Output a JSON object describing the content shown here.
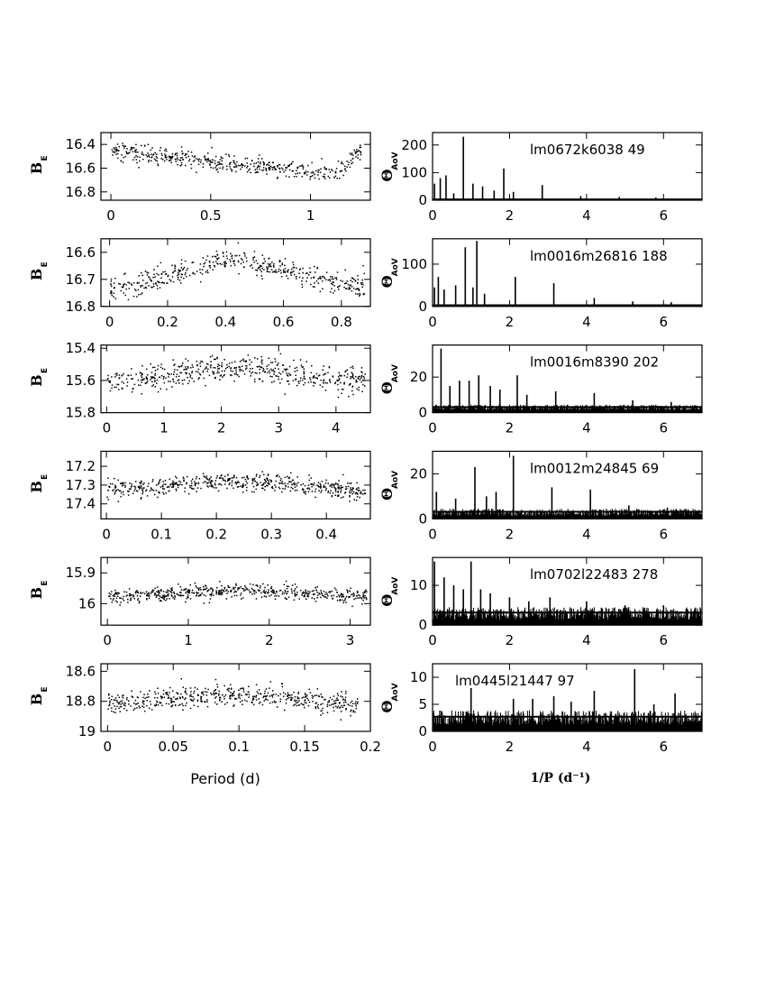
{
  "chart_data": {
    "type": "scatter",
    "layout": "6x2 grid: left column phase-folded light curves, right column AoV periodograms",
    "left_xlabel": "Period (d)",
    "right_xlabel": "1/P  (d⁻¹)",
    "panels": [
      {
        "star": "lm0672k6038 49",
        "left": {
          "ylabel": "B",
          "ylabel_sub": "E",
          "xlim": [
            -0.05,
            1.3
          ],
          "ylim": [
            16.87,
            16.3
          ],
          "xticks": [
            0,
            0.5,
            1
          ],
          "xtick_labels": [
            "0",
            "0.5",
            "1"
          ],
          "yticks": [
            16.4,
            16.6,
            16.8
          ],
          "ytick_labels": [
            "16.4",
            "16.6",
            "16.8"
          ],
          "period": 1.25,
          "mag_mean": 16.55,
          "amplitude": 0.1,
          "scatter": 0.035,
          "shape": "rising",
          "points": 460
        },
        "right": {
          "ylabel": "Θ",
          "ylabel_sub": "AoV",
          "xlim": [
            0,
            7
          ],
          "ylim": [
            0,
            245
          ],
          "xticks": [
            0,
            2,
            4,
            6
          ],
          "xtick_labels": [
            "0",
            "2",
            "4",
            "6"
          ],
          "yticks": [
            0,
            100,
            200
          ],
          "ytick_labels": [
            "0",
            "100",
            "200"
          ],
          "noise": 3,
          "peaks": [
            [
              0.05,
              60
            ],
            [
              0.2,
              80
            ],
            [
              0.35,
              90
            ],
            [
              0.55,
              25
            ],
            [
              0.8,
              230
            ],
            [
              1.05,
              60
            ],
            [
              1.3,
              50
            ],
            [
              1.6,
              35
            ],
            [
              1.85,
              115
            ],
            [
              2.1,
              30
            ],
            [
              2.85,
              55
            ],
            [
              3.85,
              15
            ],
            [
              4.85,
              12
            ],
            [
              5.8,
              10
            ]
          ]
        }
      },
      {
        "star": "lm0016m26816 188",
        "left": {
          "ylabel": "B",
          "ylabel_sub": "E",
          "xlim": [
            -0.03,
            0.9
          ],
          "ylim": [
            16.8,
            16.55
          ],
          "xticks": [
            0,
            0.2,
            0.4,
            0.6,
            0.8
          ],
          "xtick_labels": [
            "0",
            "0.2",
            "0.4",
            "0.6",
            "0.8"
          ],
          "yticks": [
            16.6,
            16.7,
            16.8
          ],
          "ytick_labels": [
            "16.6",
            "16.7",
            "16.8"
          ],
          "period": 0.88,
          "mag_mean": 16.68,
          "amplitude": 0.045,
          "scatter": 0.022,
          "shape": "sine",
          "points": 460
        },
        "right": {
          "ylabel": "Θ",
          "ylabel_sub": "AoV",
          "xlim": [
            0,
            7
          ],
          "ylim": [
            0,
            160
          ],
          "xticks": [
            0,
            2,
            4,
            6
          ],
          "xtick_labels": [
            "0",
            "2",
            "4",
            "6"
          ],
          "yticks": [
            0,
            100
          ],
          "ytick_labels": [
            "0",
            "100"
          ],
          "noise": 3,
          "peaks": [
            [
              0.05,
              45
            ],
            [
              0.15,
              70
            ],
            [
              0.3,
              40
            ],
            [
              0.6,
              50
            ],
            [
              0.85,
              140
            ],
            [
              1.05,
              45
            ],
            [
              1.15,
              155
            ],
            [
              1.35,
              30
            ],
            [
              2.15,
              70
            ],
            [
              3.15,
              55
            ],
            [
              4.2,
              20
            ],
            [
              5.2,
              12
            ],
            [
              6.2,
              10
            ]
          ]
        }
      },
      {
        "star": "lm0016m8390 202",
        "left": {
          "ylabel": "B",
          "ylabel_sub": "E",
          "xlim": [
            -0.1,
            4.6
          ],
          "ylim": [
            15.8,
            15.38
          ],
          "xticks": [
            0,
            1,
            2,
            3,
            4
          ],
          "xtick_labels": [
            "0",
            "1",
            "2",
            "3",
            "4"
          ],
          "yticks": [
            15.4,
            15.6,
            15.8
          ],
          "ytick_labels": [
            "15.4",
            "15.6",
            "15.8"
          ],
          "period": 4.5,
          "mag_mean": 15.56,
          "amplitude": 0.045,
          "scatter": 0.04,
          "shape": "sine",
          "points": 520
        },
        "right": {
          "ylabel": "Θ",
          "ylabel_sub": "AoV",
          "xlim": [
            0,
            7
          ],
          "ylim": [
            0,
            38
          ],
          "xticks": [
            0,
            2,
            4,
            6
          ],
          "xtick_labels": [
            "0",
            "2",
            "4",
            "6"
          ],
          "yticks": [
            0,
            20
          ],
          "ytick_labels": [
            "0",
            "20"
          ],
          "noise": 3.5,
          "peaks": [
            [
              0.22,
              36
            ],
            [
              0.45,
              15
            ],
            [
              0.7,
              18
            ],
            [
              0.95,
              18
            ],
            [
              1.2,
              21
            ],
            [
              1.5,
              15
            ],
            [
              1.75,
              13
            ],
            [
              2.2,
              21
            ],
            [
              2.45,
              10
            ],
            [
              3.2,
              12
            ],
            [
              4.2,
              11
            ],
            [
              5.2,
              7
            ],
            [
              6.2,
              6
            ]
          ]
        }
      },
      {
        "star": "lm0012m24845 69",
        "left": {
          "ylabel": "B",
          "ylabel_sub": "E",
          "xlim": [
            -0.01,
            0.48
          ],
          "ylim": [
            17.48,
            17.12
          ],
          "xticks": [
            0,
            0.1,
            0.2,
            0.3,
            0.4
          ],
          "xtick_labels": [
            "0",
            "0.1",
            "0.2",
            "0.3",
            "0.4"
          ],
          "yticks": [
            17.2,
            17.3,
            17.4
          ],
          "ytick_labels": [
            "17.2",
            "17.3",
            "17.4"
          ],
          "period": 0.47,
          "mag_mean": 17.3,
          "amplitude": 0.02,
          "scatter": 0.025,
          "shape": "sine",
          "points": 540
        },
        "right": {
          "ylabel": "Θ",
          "ylabel_sub": "AoV",
          "xlim": [
            0,
            7
          ],
          "ylim": [
            0,
            30
          ],
          "xticks": [
            0,
            2,
            4,
            6
          ],
          "xtick_labels": [
            "0",
            "2",
            "4",
            "6"
          ],
          "yticks": [
            0,
            20
          ],
          "ytick_labels": [
            "0",
            "20"
          ],
          "noise": 3.5,
          "peaks": [
            [
              0.1,
              12
            ],
            [
              0.6,
              9
            ],
            [
              1.1,
              23
            ],
            [
              1.4,
              10
            ],
            [
              1.65,
              12
            ],
            [
              2.1,
              28
            ],
            [
              3.1,
              14
            ],
            [
              4.1,
              13
            ],
            [
              5.1,
              6
            ],
            [
              6.1,
              5
            ]
          ]
        }
      },
      {
        "star": "lm0702l22483 278",
        "left": {
          "ylabel": "B",
          "ylabel_sub": "E",
          "xlim": [
            -0.08,
            3.25
          ],
          "ylim": [
            16.07,
            15.85
          ],
          "xticks": [
            0,
            1,
            2,
            3
          ],
          "xtick_labels": [
            "0",
            "1",
            "2",
            "3"
          ],
          "yticks": [
            15.9,
            16
          ],
          "ytick_labels": [
            "15.9",
            "16"
          ],
          "period": 3.2,
          "mag_mean": 15.965,
          "amplitude": 0.008,
          "scatter": 0.011,
          "shape": "sine",
          "points": 540
        },
        "right": {
          "ylabel": "Θ",
          "ylabel_sub": "AoV",
          "xlim": [
            0,
            7
          ],
          "ylim": [
            0,
            17
          ],
          "xticks": [
            0,
            2,
            4,
            6
          ],
          "xtick_labels": [
            "0",
            "2",
            "4",
            "6"
          ],
          "yticks": [
            0,
            10
          ],
          "ytick_labels": [
            "0",
            "10"
          ],
          "noise": 3.5,
          "peaks": [
            [
              0.05,
              16
            ],
            [
              0.3,
              12
            ],
            [
              0.55,
              10
            ],
            [
              0.8,
              9
            ],
            [
              1.0,
              16
            ],
            [
              1.25,
              9
            ],
            [
              1.5,
              8
            ],
            [
              2.0,
              7
            ],
            [
              2.5,
              6
            ],
            [
              3.05,
              7
            ],
            [
              4.0,
              6
            ],
            [
              5.0,
              5
            ],
            [
              6.0,
              5
            ]
          ]
        }
      },
      {
        "star": "lm0445l21447 97",
        "left": {
          "ylabel": "B",
          "ylabel_sub": "E",
          "xlim": [
            -0.005,
            0.2
          ],
          "ylim": [
            19.0,
            18.55
          ],
          "xticks": [
            0,
            0.05,
            0.1,
            0.15,
            0.2
          ],
          "xtick_labels": [
            "0",
            "0.05",
            "0.1",
            "0.15",
            "0.2"
          ],
          "yticks": [
            18.6,
            18.8,
            19
          ],
          "ytick_labels": [
            "18.6",
            "18.8",
            "19"
          ],
          "period": 0.19,
          "mag_mean": 18.78,
          "amplitude": 0.03,
          "scatter": 0.035,
          "shape": "sine",
          "points": 520
        },
        "right": {
          "ylabel": "Θ",
          "ylabel_sub": "AoV",
          "xlim": [
            0,
            7
          ],
          "ylim": [
            0,
            12.5
          ],
          "xticks": [
            0,
            2,
            4,
            6
          ],
          "xtick_labels": [
            "0",
            "2",
            "4",
            "6"
          ],
          "yticks": [
            0,
            5,
            10
          ],
          "ytick_labels": [
            "0",
            "5",
            "10"
          ],
          "noise": 3,
          "peaks": [
            [
              1.0,
              8
            ],
            [
              2.1,
              6
            ],
            [
              2.6,
              6
            ],
            [
              3.15,
              6.5
            ],
            [
              3.6,
              5.5
            ],
            [
              4.2,
              7.5
            ],
            [
              5.25,
              11.5
            ],
            [
              5.75,
              5
            ],
            [
              6.3,
              7
            ]
          ]
        }
      }
    ]
  }
}
